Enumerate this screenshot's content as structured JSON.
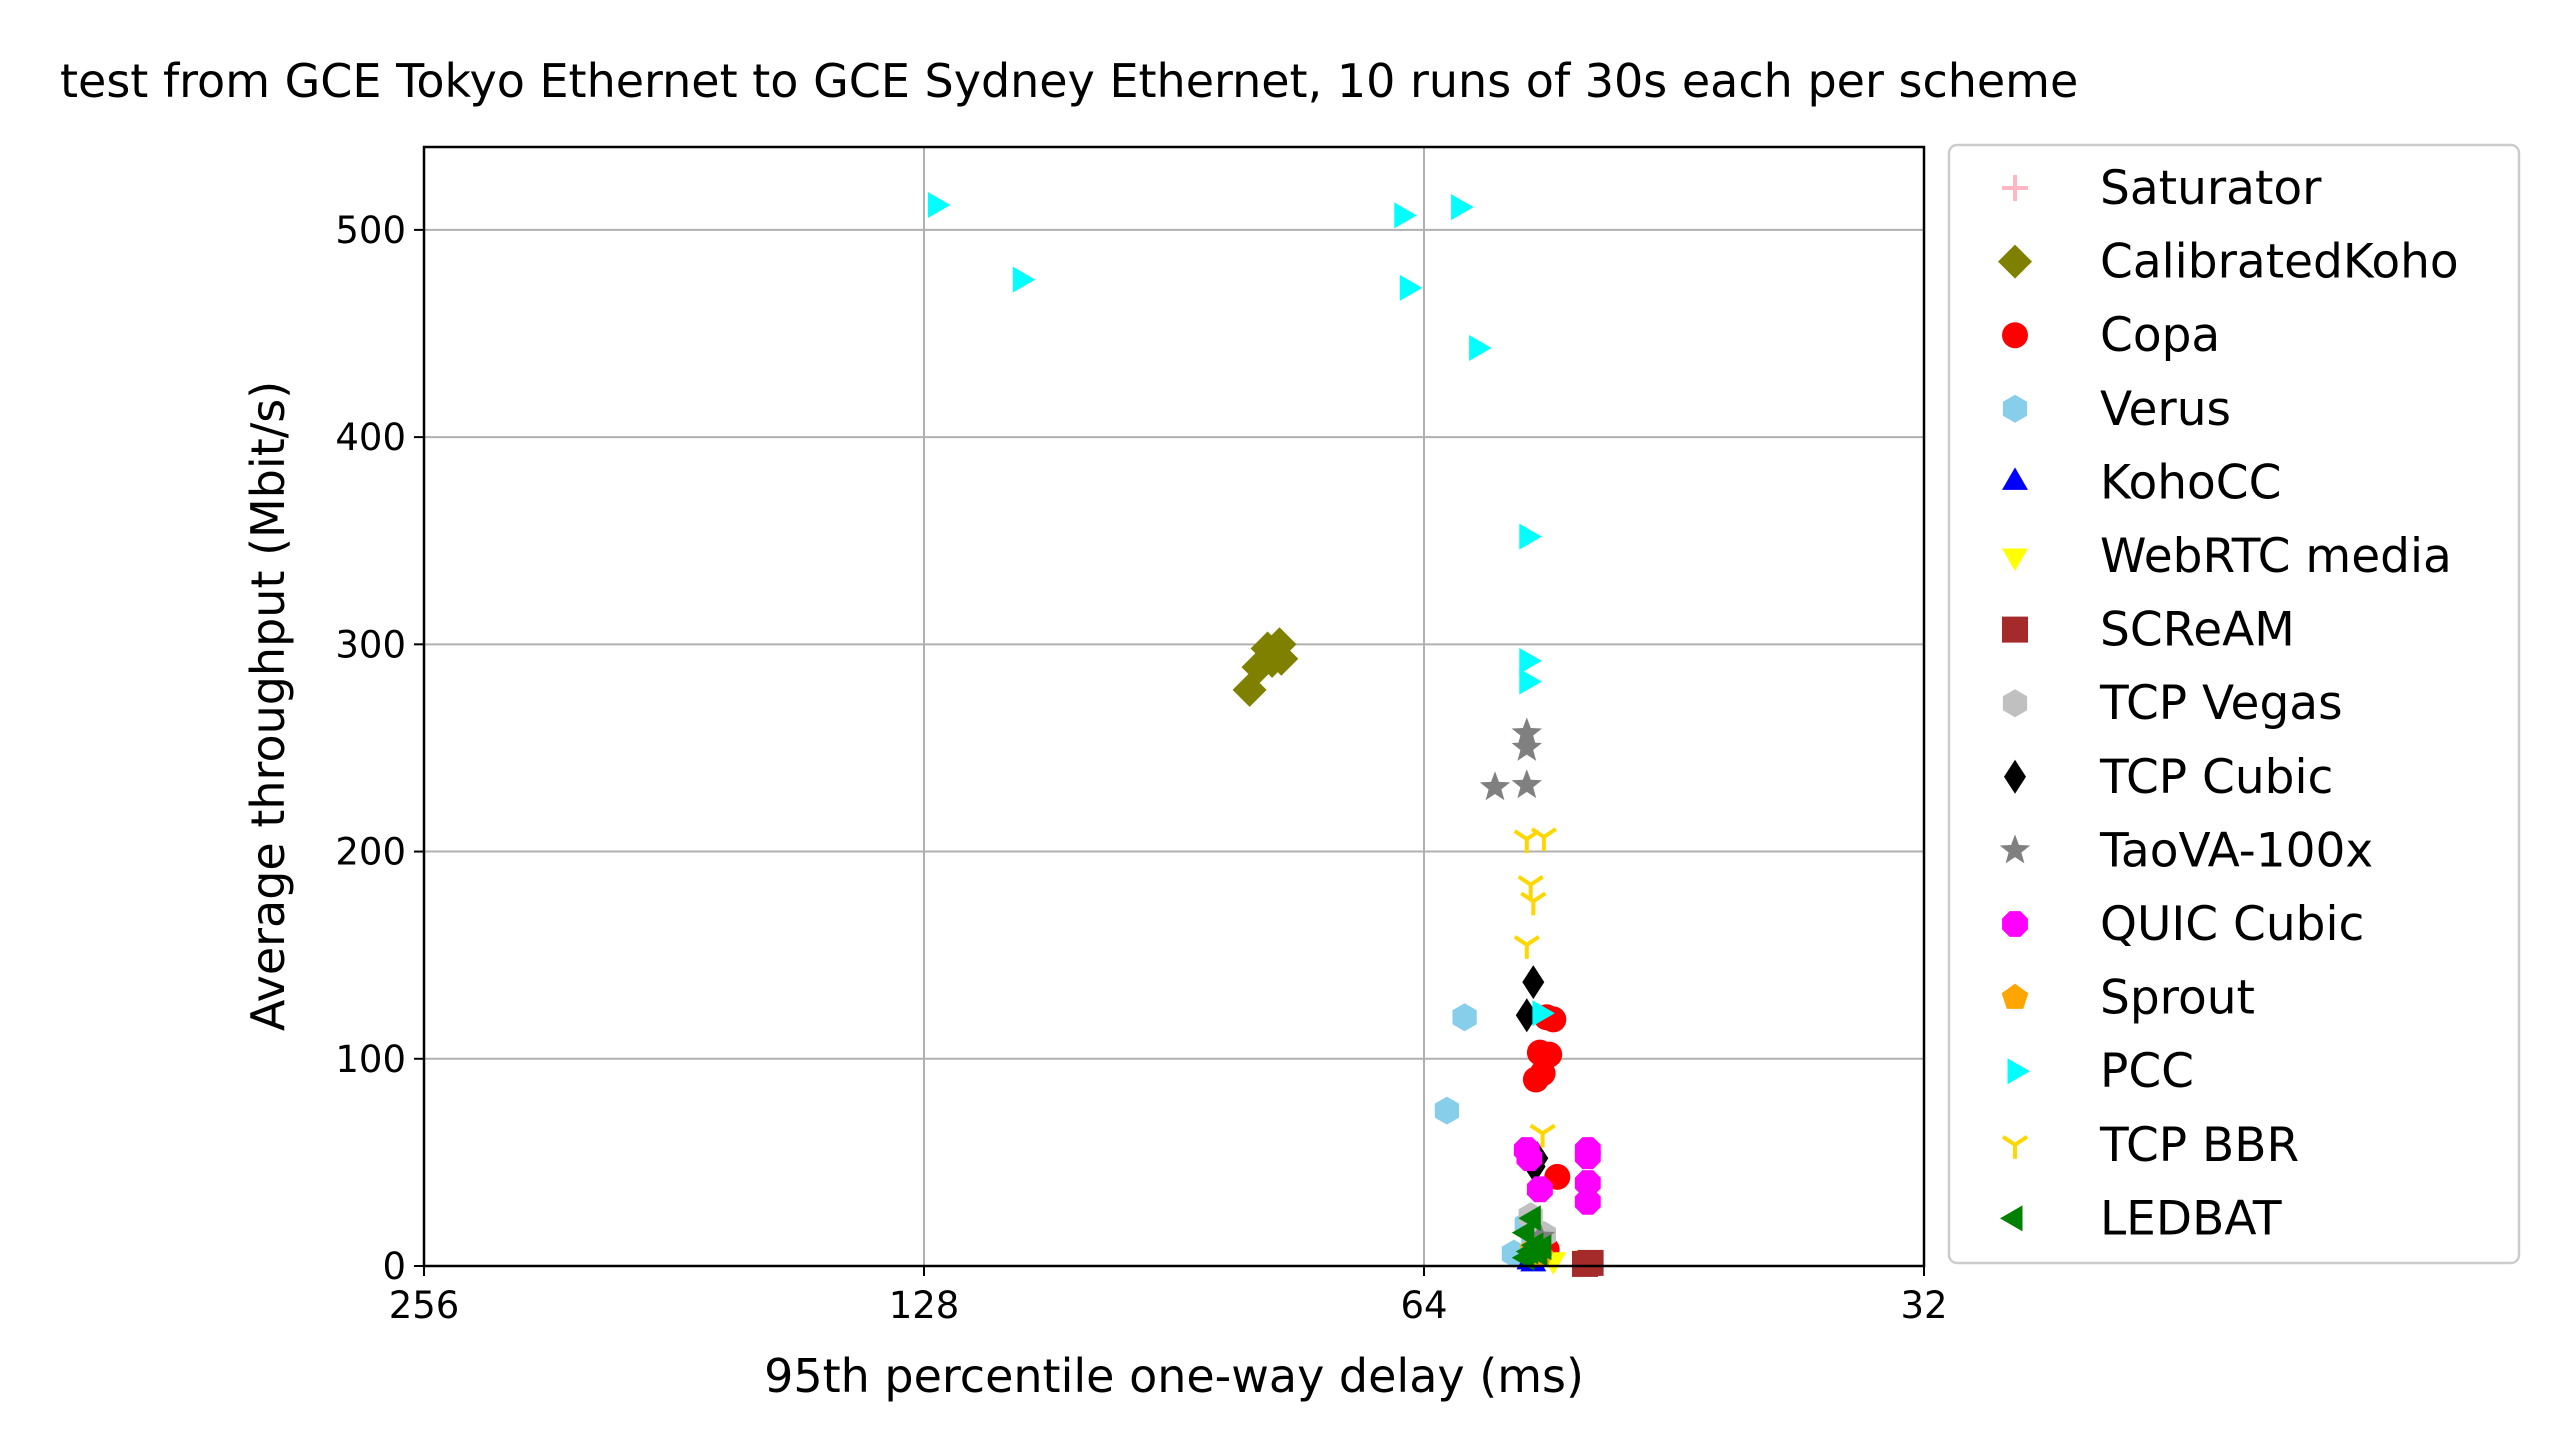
{
  "chart_data": {
    "type": "scatter",
    "title": "test from GCE Tokyo Ethernet to GCE Sydney Ethernet, 10 runs of 30s each per scheme",
    "xlabel": "95th percentile one-way delay (ms)",
    "ylabel": "Average throughput (Mbit/s)",
    "x_scale": "log2",
    "x_inverted": true,
    "xlim": [
      256,
      32
    ],
    "ylim": [
      0,
      540
    ],
    "xticks": [
      256,
      128,
      64,
      32
    ],
    "xtick_labels": [
      "256",
      "128",
      "64",
      "32"
    ],
    "yticks": [
      0,
      100,
      200,
      300,
      400,
      500
    ],
    "ytick_labels": [
      "0",
      "100",
      "200",
      "300",
      "400",
      "500"
    ],
    "grid": true,
    "legend_position": "outside-right",
    "series": [
      {
        "name": "Saturator",
        "marker": "plus",
        "color": "#ffb6c1",
        "points": []
      },
      {
        "name": "CalibratedKoho",
        "marker": "diamond",
        "color": "#808000",
        "points": [
          [
            81.5,
            278
          ],
          [
            80.5,
            289
          ],
          [
            79.5,
            298
          ],
          [
            78.2,
            300
          ],
          [
            78.0,
            293
          ],
          [
            79.0,
            292
          ]
        ]
      },
      {
        "name": "Copa",
        "marker": "circle",
        "color": "#ff0000",
        "points": [
          [
            53.5,
            119
          ],
          [
            54.0,
            120
          ],
          [
            54.5,
            103
          ],
          [
            53.8,
            102
          ],
          [
            54.3,
            93
          ],
          [
            54.8,
            90
          ],
          [
            53.2,
            43
          ],
          [
            54.0,
            8
          ],
          [
            54.6,
            5
          ]
        ]
      },
      {
        "name": "Verus",
        "marker": "hexagon",
        "color": "#87ceeb",
        "points": [
          [
            60.5,
            120
          ],
          [
            62.0,
            75
          ],
          [
            56.5,
            6
          ],
          [
            55.5,
            20
          ],
          [
            55.0,
            12
          ]
        ]
      },
      {
        "name": "KohoCC",
        "marker": "triangle-up",
        "color": "#0000ff",
        "points": [
          [
            55.3,
            2
          ],
          [
            55.0,
            1
          ]
        ]
      },
      {
        "name": "WebRTC media",
        "marker": "triangle-down",
        "color": "#ffff00",
        "points": [
          [
            51.0,
            4
          ],
          [
            53.5,
            3
          ]
        ]
      },
      {
        "name": "SCReAM",
        "marker": "square",
        "color": "#a52a2a",
        "points": [
          [
            51.2,
            1
          ],
          [
            50.8,
            1.5
          ]
        ]
      },
      {
        "name": "TCP Vegas",
        "marker": "hexagon",
        "color": "#c0c0c0",
        "points": [
          [
            55.2,
            24
          ],
          [
            54.2,
            15
          ]
        ]
      },
      {
        "name": "TCP Cubic",
        "marker": "thin-diamond",
        "color": "#000000",
        "points": [
          [
            55.0,
            137
          ],
          [
            55.5,
            121
          ],
          [
            54.7,
            52
          ],
          [
            54.9,
            48
          ]
        ]
      },
      {
        "name": "TaoVA-100x",
        "marker": "star",
        "color": "#808080",
        "points": [
          [
            58.0,
            231
          ],
          [
            55.5,
            257
          ],
          [
            55.5,
            250
          ],
          [
            55.5,
            232
          ],
          [
            54.5,
            14
          ]
        ]
      },
      {
        "name": "QUIC Cubic",
        "marker": "octagon",
        "color": "#ff00ff",
        "points": [
          [
            55.5,
            56
          ],
          [
            51.0,
            56
          ],
          [
            51.0,
            53
          ],
          [
            51.0,
            40
          ],
          [
            51.0,
            31
          ],
          [
            54.5,
            37
          ],
          [
            55.3,
            52
          ]
        ]
      },
      {
        "name": "Sprout",
        "marker": "pentagon",
        "color": "#ffa500",
        "points": [
          [
            55.0,
            8
          ],
          [
            54.5,
            5
          ]
        ]
      },
      {
        "name": "PCC",
        "marker": "triangle-right",
        "color": "#00ffff",
        "points": [
          [
            112.0,
            476
          ],
          [
            126.0,
            512
          ],
          [
            66.0,
            507
          ],
          [
            65.5,
            472
          ],
          [
            61.0,
            511
          ],
          [
            59.5,
            443
          ],
          [
            55.5,
            352
          ],
          [
            55.5,
            292
          ],
          [
            55.5,
            282
          ],
          [
            54.5,
            122
          ]
        ]
      },
      {
        "name": "TCP BBR",
        "marker": "tri-down",
        "color": "#ffd700",
        "points": [
          [
            55.5,
            206
          ],
          [
            54.2,
            207
          ],
          [
            55.2,
            184
          ],
          [
            55.0,
            176
          ],
          [
            55.5,
            155
          ],
          [
            54.3,
            64
          ]
        ]
      },
      {
        "name": "LEDBAT",
        "marker": "triangle-left",
        "color": "#008000",
        "points": [
          [
            55.0,
            23
          ],
          [
            55.5,
            16
          ],
          [
            54.8,
            10
          ],
          [
            55.2,
            7
          ],
          [
            54.5,
            6
          ],
          [
            55.5,
            4
          ],
          [
            54.2,
            9
          ]
        ]
      }
    ]
  }
}
